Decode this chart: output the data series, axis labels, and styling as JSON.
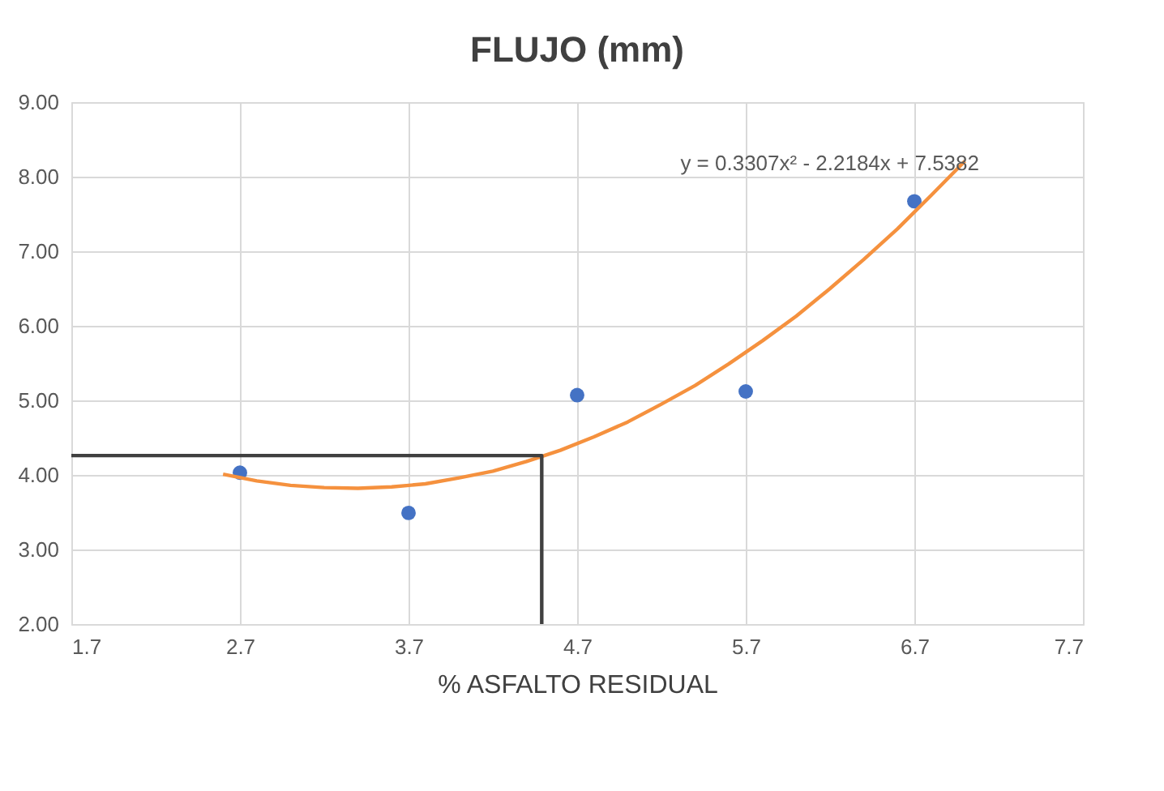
{
  "chart_data": {
    "type": "scatter",
    "title": "FLUJO (mm)",
    "xlabel": "% ASFALTO RESIDUAL",
    "xlim": [
      1.7,
      7.7
    ],
    "xticks": [
      1.7,
      2.7,
      3.7,
      4.7,
      5.7,
      6.7,
      7.7
    ],
    "ylim": [
      2,
      9
    ],
    "yticks": [
      {
        "value": 2,
        "label": "2.00"
      },
      {
        "value": 3,
        "label": "3.00"
      },
      {
        "value": 4,
        "label": "4.00"
      },
      {
        "value": 5,
        "label": "5.00"
      },
      {
        "value": 6,
        "label": "6.00"
      },
      {
        "value": 7,
        "label": "7.00"
      },
      {
        "value": 8,
        "label": "8.00"
      },
      {
        "value": 9,
        "label": "9.00"
      }
    ],
    "grid": true,
    "marker": "circle",
    "series": [
      {
        "color": "#4472c4",
        "x": [
          2.7,
          3.7,
          4.7,
          5.7,
          6.7
        ],
        "values": [
          4.03,
          3.49,
          5.07,
          5.12,
          7.67
        ]
      },
      {
        "type": "line",
        "color": "#f5913e",
        "marker": "none",
        "x": [
          2.6,
          2.8,
          3.0,
          3.2,
          3.4,
          3.6,
          3.8,
          4.0,
          4.2,
          4.4,
          4.6,
          4.8,
          5.0,
          5.2,
          5.4,
          5.6,
          5.8,
          6.0,
          6.2,
          6.4,
          6.6,
          6.8,
          7.0
        ],
        "values": [
          4.01,
          3.92,
          3.86,
          3.83,
          3.82,
          3.84,
          3.88,
          3.96,
          4.05,
          4.18,
          4.33,
          4.51,
          4.71,
          4.95,
          5.2,
          5.49,
          5.8,
          6.13,
          6.5,
          6.89,
          7.3,
          7.75,
          8.21
        ]
      },
      {
        "type": "line",
        "color": "#404040",
        "marker": "none",
        "x": [
          1.7,
          4.49,
          4.49
        ],
        "values": [
          4.26,
          4.26,
          2.0
        ]
      }
    ],
    "annotations": [
      "y = 0.3307x² - 2.2184x + 7.5382"
    ]
  }
}
